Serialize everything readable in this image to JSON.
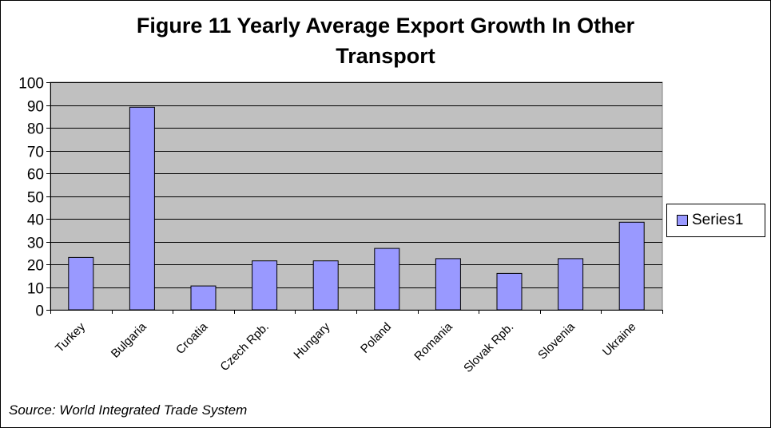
{
  "chart_data": {
    "type": "bar",
    "title": "Figure 11 Yearly Average Export Growth In Other Transport",
    "categories": [
      "Turkey",
      "Bulgaria",
      "Croatia",
      "Czech Rpb.",
      "Hungary",
      "Poland",
      "Romania",
      "Slovak Rpb.",
      "Slovenia",
      "Ukraine"
    ],
    "series": [
      {
        "name": "Series1",
        "values": [
          23,
          89,
          10.5,
          21.5,
          21.5,
          27,
          22.5,
          16,
          22.5,
          38.5
        ]
      }
    ],
    "ylim": [
      0,
      100
    ],
    "y_ticks": [
      "0",
      "10",
      "20",
      "30",
      "40",
      "50",
      "60",
      "70",
      "80",
      "90",
      "100"
    ],
    "grid": true,
    "legend": "right",
    "colors": {
      "bar_fill": "#9999ff",
      "plot_background": "#c0c0c0",
      "gridline": "#000000"
    },
    "source": "Source: World Integrated Trade System"
  }
}
